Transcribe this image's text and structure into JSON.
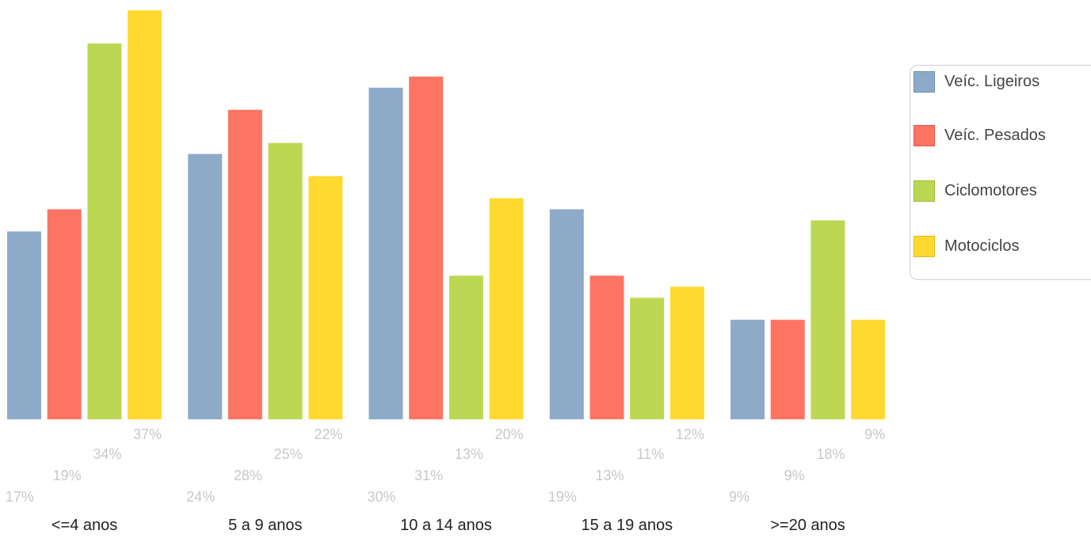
{
  "chart_data": {
    "type": "bar",
    "categories": [
      "<=4 anos",
      "5 a 9 anos",
      "10 a 14 anos",
      "15 a 19 anos",
      ">=20 anos"
    ],
    "series": [
      {
        "name": "Veíc. Ligeiros",
        "color": "#8eaac9",
        "values": [
          17,
          24,
          30,
          19,
          9
        ]
      },
      {
        "name": "Veíc. Pesados",
        "color": "#fe7463",
        "values": [
          19,
          28,
          31,
          13,
          9
        ]
      },
      {
        "name": "Ciclomotores",
        "color": "#bcd852",
        "values": [
          34,
          25,
          13,
          11,
          18
        ]
      },
      {
        "name": "Motociclos",
        "color": "#ffd92f",
        "values": [
          37,
          22,
          20,
          12,
          9
        ]
      }
    ],
    "value_suffix": "%",
    "legend_position": "right",
    "grid": false,
    "ylim": [
      0,
      37
    ]
  }
}
